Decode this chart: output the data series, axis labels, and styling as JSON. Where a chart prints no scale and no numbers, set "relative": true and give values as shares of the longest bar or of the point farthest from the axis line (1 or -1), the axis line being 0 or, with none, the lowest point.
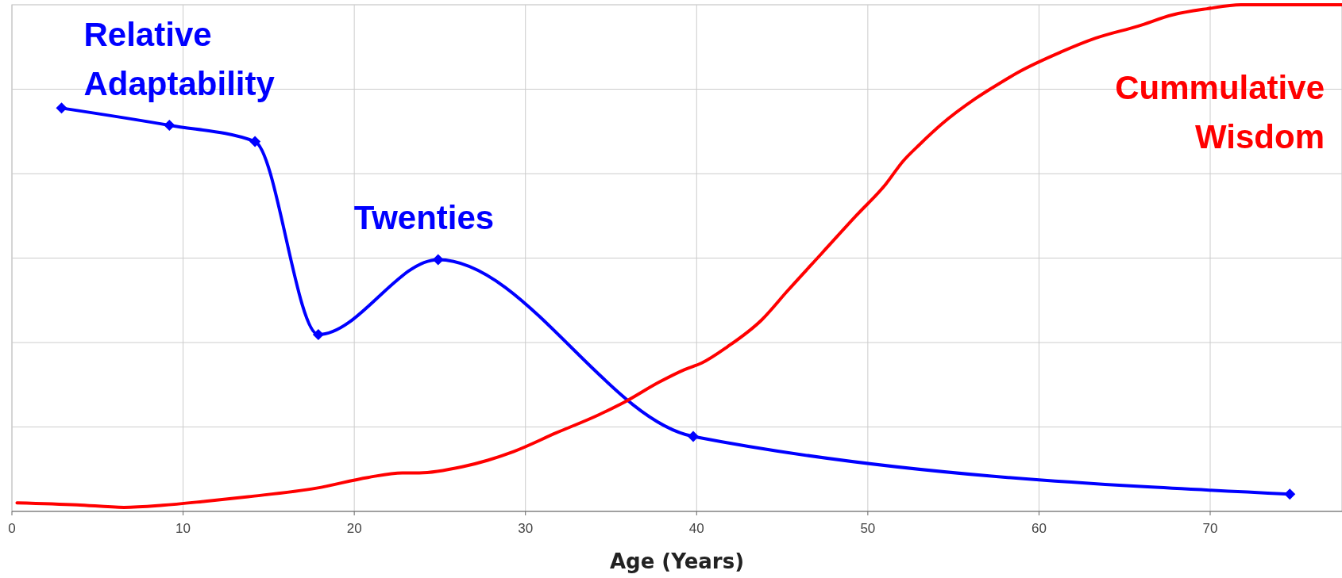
{
  "chart_data": {
    "type": "line",
    "relative": true,
    "xlabel": "Age (Years)",
    "xlim": [
      0,
      77.7
    ],
    "xticks": [
      0,
      10,
      20,
      30,
      40,
      50,
      60,
      70
    ],
    "grid": true,
    "annotations": [
      {
        "text": "Twenties",
        "x": 25,
        "y": 0.497
      }
    ],
    "series": [
      {
        "name": "Relative Adaptability",
        "color": "#0000ff",
        "marker": "diamond",
        "x": [
          2.9,
          9.2,
          14.2,
          17.9,
          24.9,
          39.8,
          74.65
        ],
        "values": [
          0.796,
          0.762,
          0.73,
          0.349,
          0.497,
          0.148,
          0.034
        ]
      },
      {
        "name": "Cummulative Wisdom",
        "color": "#ff0000",
        "marker": "none",
        "x": [
          0.3,
          3.8,
          6.55,
          8.8,
          11.3,
          13.8,
          17.8,
          20.8,
          22.8,
          23.8,
          26.3,
          27.8,
          29.3,
          31.8,
          34.3,
          35.8,
          37.8,
          39.3,
          40.3,
          41.8,
          43.8,
          45.3,
          47.3,
          49.3,
          51.05,
          52.05,
          53.05,
          54.3,
          56.3,
          57.8,
          58.8,
          61.3,
          63.3,
          65.8,
          67.8,
          69.8,
          71.8,
          77.7
        ],
        "values": [
          0.017,
          0.013,
          0.008,
          0.012,
          0.02,
          0.029,
          0.046,
          0.067,
          0.076,
          0.076,
          0.088,
          0.101,
          0.118,
          0.155,
          0.191,
          0.216,
          0.255,
          0.28,
          0.293,
          0.325,
          0.378,
          0.435,
          0.509,
          0.583,
          0.646,
          0.691,
          0.725,
          0.764,
          0.815,
          0.847,
          0.867,
          0.907,
          0.934,
          0.958,
          0.98,
          0.992,
          1,
          1
        ]
      }
    ]
  }
}
